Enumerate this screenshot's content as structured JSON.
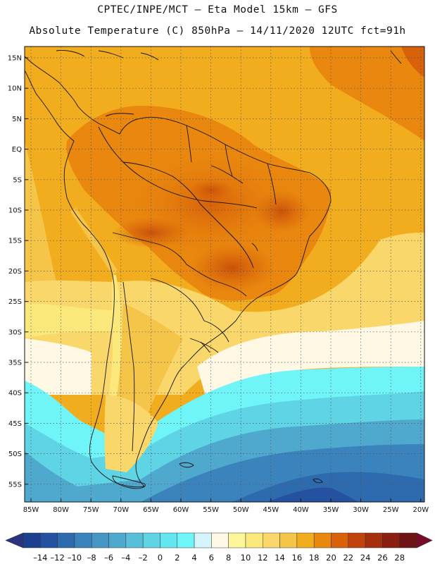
{
  "header": {
    "title_line1": "CPTEC/INPE/MCT –  Eta Model 15km – GFS",
    "title_line2": "Absolute Temperature (C) 850hPa – 14/11/2020 12UTC fct=91h"
  },
  "map": {
    "lat_labels": [
      "15N",
      "10N",
      "5N",
      "EQ",
      "5S",
      "10S",
      "15S",
      "20S",
      "25S",
      "30S",
      "35S",
      "40S",
      "45S",
      "50S",
      "55S"
    ],
    "lon_labels": [
      "85W",
      "80W",
      "75W",
      "70W",
      "65W",
      "60W",
      "55W",
      "50W",
      "45W",
      "40W",
      "35W",
      "30W",
      "25W",
      "20W"
    ],
    "gridline_style": "dotted"
  },
  "colorbar": {
    "labels": [
      "-14",
      "-12",
      "-10",
      "-8",
      "-6",
      "-4",
      "-2",
      "0",
      "2",
      "4",
      "6",
      "8",
      "10",
      "12",
      "14",
      "16",
      "18",
      "20",
      "22",
      "24",
      "26",
      "28"
    ],
    "colors": [
      "#1c3f8f",
      "#2452a0",
      "#2e6aae",
      "#3a83bd",
      "#4696c6",
      "#4fa9cf",
      "#58bfda",
      "#5fd4e4",
      "#63e6ef",
      "#6ff5f8",
      "#d3f4fa",
      "#fff8e4",
      "#fdf69a",
      "#fbe87a",
      "#f9d76a",
      "#f5c54a",
      "#f2ad1e",
      "#e9870e",
      "#d8610a",
      "#bf430a",
      "#a52e0c",
      "#8a1e10",
      "#6e1414"
    ],
    "under_color": "#2b3280",
    "over_color": "#7a0a2a"
  }
}
